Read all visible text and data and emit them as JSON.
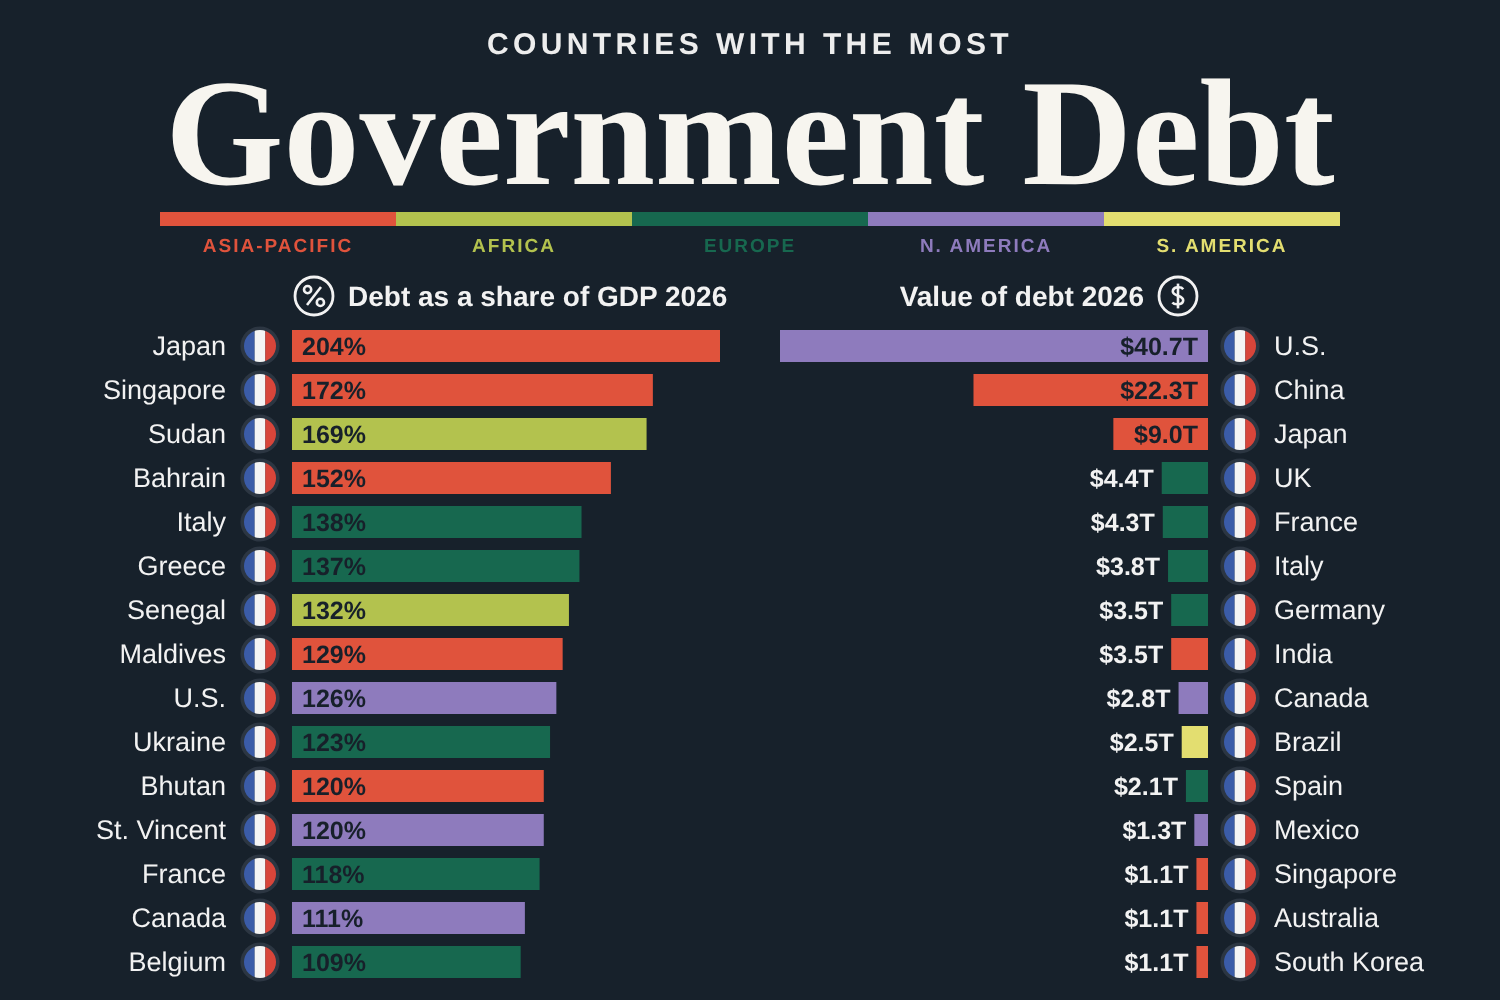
{
  "chart_data": [
    {
      "type": "bar",
      "orientation": "horizontal",
      "stacked": true,
      "subtitle": "COUNTRIES WITH THE MOST",
      "title": "Government Debt",
      "xlabel": "Debt as a share of GDP 2026",
      "legend": "top",
      "tick_labels": "y",
      "categories": [
        "Japan",
        "Singapore",
        "Sudan",
        "Bahrain",
        "Italy",
        "Greece",
        "Senegal",
        "Maldives",
        "U.S.",
        "Ukraine",
        "Bhutan",
        "St. Vincent",
        "France",
        "Canada",
        "Belgium"
      ],
      "series": [
        {
          "name": "ASIA-PACIFIC",
          "color": "#e0533c",
          "values": [
            204,
            172,
            null,
            152,
            null,
            null,
            null,
            129,
            null,
            null,
            120,
            null,
            null,
            null,
            null
          ],
          "value_labels": [
            "204%",
            "172%",
            null,
            "152%",
            null,
            null,
            null,
            "129%",
            null,
            null,
            "120%",
            null,
            null,
            null,
            null
          ]
        },
        {
          "name": "AFRICA",
          "color": "#b3c24e",
          "values": [
            null,
            null,
            169,
            null,
            null,
            null,
            132,
            null,
            null,
            null,
            null,
            null,
            null,
            null,
            null
          ],
          "value_labels": [
            null,
            null,
            "169%",
            null,
            null,
            null,
            "132%",
            null,
            null,
            null,
            null,
            null,
            null,
            null,
            null
          ]
        },
        {
          "name": "EUROPE",
          "color": "#17684f",
          "values": [
            null,
            null,
            null,
            null,
            138,
            137,
            null,
            null,
            null,
            123,
            null,
            null,
            118,
            null,
            109
          ],
          "value_labels": [
            null,
            null,
            null,
            null,
            "138%",
            "137%",
            null,
            null,
            null,
            "123%",
            null,
            null,
            "118%",
            null,
            "109%"
          ]
        },
        {
          "name": "N. AMERICA",
          "color": "#8e7bbd",
          "values": [
            null,
            null,
            null,
            null,
            null,
            null,
            null,
            null,
            126,
            null,
            null,
            120,
            null,
            111,
            null
          ],
          "value_labels": [
            null,
            null,
            null,
            null,
            null,
            null,
            null,
            null,
            "126%",
            null,
            null,
            "120%",
            null,
            "111%",
            null
          ]
        },
        {
          "name": "S. AMERICA",
          "color": "#e3de70",
          "values": [
            null,
            null,
            null,
            null,
            null,
            null,
            null,
            null,
            null,
            null,
            null,
            null,
            null,
            null,
            null
          ]
        }
      ]
    },
    {
      "type": "bar",
      "orientation": "horizontal",
      "stacked": true,
      "xlabel": "Value of debt 2026",
      "tick_labels": "y",
      "categories": [
        "U.S.",
        "China",
        "Japan",
        "UK",
        "France",
        "Italy",
        "Germany",
        "India",
        "Canada",
        "Brazil",
        "Spain",
        "Mexico",
        "Singapore",
        "Australia",
        "South Korea"
      ],
      "series": [
        {
          "color": "#e0533c",
          "values": [
            null,
            22.3,
            9.0,
            null,
            null,
            null,
            null,
            3.5,
            null,
            null,
            null,
            null,
            1.1,
            1.1,
            1.1
          ],
          "value_labels": [
            null,
            "$22.3T",
            "$9.0T",
            null,
            null,
            null,
            null,
            "$3.5T",
            null,
            null,
            null,
            null,
            "$1.1T",
            "$1.1T",
            "$1.1T"
          ]
        },
        {
          "color": "#17684f",
          "values": [
            null,
            null,
            null,
            4.4,
            4.3,
            3.8,
            3.5,
            null,
            null,
            null,
            2.1,
            null,
            null,
            null,
            null
          ],
          "value_labels": [
            null,
            null,
            null,
            "$4.4T",
            "$4.3T",
            "$3.8T",
            "$3.5T",
            null,
            null,
            null,
            "$2.1T",
            null,
            null,
            null,
            null
          ]
        },
        {
          "color": "#8e7bbd",
          "values": [
            40.7,
            null,
            null,
            null,
            null,
            null,
            null,
            null,
            2.8,
            null,
            null,
            1.3,
            null,
            null,
            null
          ],
          "value_labels": [
            "$40.7T",
            null,
            null,
            null,
            null,
            null,
            null,
            null,
            "$2.8T",
            null,
            null,
            "$1.3T",
            null,
            null,
            null
          ]
        },
        {
          "color": "#e3de70",
          "values": [
            null,
            null,
            null,
            null,
            null,
            null,
            null,
            null,
            null,
            2.5,
            null,
            null,
            null,
            null,
            null
          ],
          "value_labels": [
            null,
            null,
            null,
            null,
            null,
            null,
            null,
            null,
            null,
            "$2.5T",
            null,
            null,
            null,
            null,
            null
          ]
        }
      ]
    }
  ]
}
